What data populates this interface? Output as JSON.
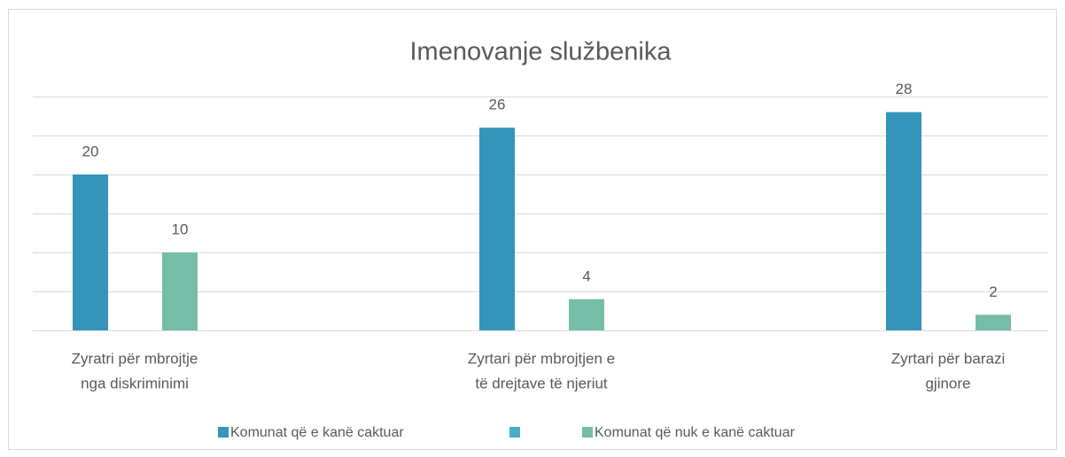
{
  "chart_data": {
    "type": "bar",
    "title": "Imenovanje službenika",
    "categories": [
      [
        "Zyratri për mbrojtje",
        "nga diskriminimi"
      ],
      [
        "Zyrtari për mbrojtjen e",
        "të drejtave të njeriut"
      ],
      [
        "Zyrtari për barazi",
        "gjinore"
      ]
    ],
    "series": [
      {
        "name": "Komunat që e kanë caktuar",
        "color": "#3494ba",
        "values": [
          20,
          26,
          28
        ]
      },
      {
        "name": "Komunat që nuk e kanë caktuar",
        "color": "#75bda7",
        "values": [
          10,
          4,
          2
        ]
      }
    ],
    "ylim": [
      0,
      30
    ],
    "yticks": [
      0,
      5,
      10,
      15,
      20,
      25,
      30
    ],
    "grid": true,
    "legend": "bottom"
  }
}
